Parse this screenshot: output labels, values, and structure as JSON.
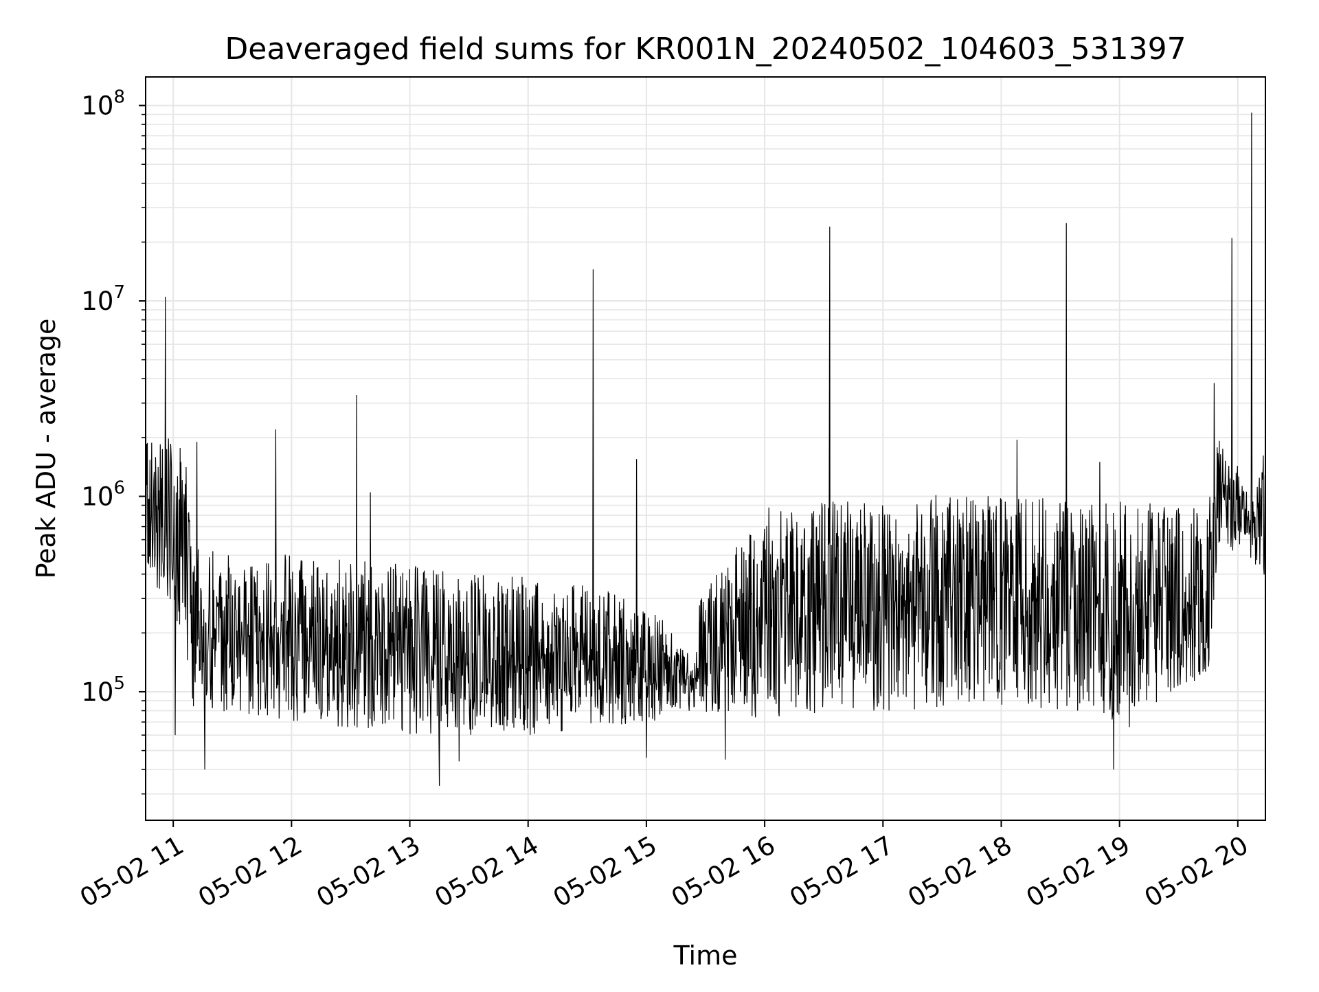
{
  "chart_data": {
    "type": "line",
    "title": "Deaveraged field sums for KR001N_20240502_104603_531397",
    "xlabel": "Time",
    "ylabel": "Peak ADU - average",
    "y_scale": "log",
    "ylim": [
      22000,
      140000000
    ],
    "xlim": [
      "2024-05-02 10:46",
      "2024-05-02 20:14"
    ],
    "grid": true,
    "line_color": "#000000",
    "x_ticks": [
      {
        "t": "2024-05-02 11:00",
        "label": "05-02 11"
      },
      {
        "t": "2024-05-02 12:00",
        "label": "05-02 12"
      },
      {
        "t": "2024-05-02 13:00",
        "label": "05-02 13"
      },
      {
        "t": "2024-05-02 14:00",
        "label": "05-02 14"
      },
      {
        "t": "2024-05-02 15:00",
        "label": "05-02 15"
      },
      {
        "t": "2024-05-02 16:00",
        "label": "05-02 16"
      },
      {
        "t": "2024-05-02 17:00",
        "label": "05-02 17"
      },
      {
        "t": "2024-05-02 18:00",
        "label": "05-02 18"
      },
      {
        "t": "2024-05-02 19:00",
        "label": "05-02 19"
      },
      {
        "t": "2024-05-02 20:00",
        "label": "05-02 20"
      }
    ],
    "y_ticks": [
      {
        "value": 100000,
        "base": "10",
        "exp": "5"
      },
      {
        "value": 1000000,
        "base": "10",
        "exp": "6"
      },
      {
        "value": 10000000,
        "base": "10",
        "exp": "7"
      },
      {
        "value": 100000000,
        "base": "10",
        "exp": "8"
      }
    ],
    "envelope": [
      {
        "t": "2024-05-02 10:46",
        "low": 400000,
        "high": 2000000
      },
      {
        "t": "2024-05-02 11:05",
        "low": 200000,
        "high": 2200000
      },
      {
        "t": "2024-05-02 11:10",
        "low": 80000,
        "high": 550000
      },
      {
        "t": "2024-05-02 12:00",
        "low": 70000,
        "high": 500000
      },
      {
        "t": "2024-05-02 13:00",
        "low": 60000,
        "high": 450000
      },
      {
        "t": "2024-05-02 14:00",
        "low": 60000,
        "high": 400000
      },
      {
        "t": "2024-05-02 15:00",
        "low": 70000,
        "high": 300000
      },
      {
        "t": "2024-05-02 15:25",
        "low": 75000,
        "high": 140000
      },
      {
        "t": "2024-05-02 15:27",
        "low": 80000,
        "high": 300000
      },
      {
        "t": "2024-05-02 16:00",
        "low": 70000,
        "high": 900000
      },
      {
        "t": "2024-05-02 16:40",
        "low": 80000,
        "high": 950000
      },
      {
        "t": "2024-05-02 17:00",
        "low": 80000,
        "high": 1050000
      },
      {
        "t": "2024-05-02 18:00",
        "low": 80000,
        "high": 1000000
      },
      {
        "t": "2024-05-02 19:00",
        "low": 70000,
        "high": 950000
      },
      {
        "t": "2024-05-02 19:45",
        "low": 120000,
        "high": 900000
      },
      {
        "t": "2024-05-02 19:50",
        "low": 550000,
        "high": 2000000
      },
      {
        "t": "2024-05-02 20:05",
        "low": 500000,
        "high": 1200000
      },
      {
        "t": "2024-05-02 20:14",
        "low": 350000,
        "high": 1700000
      }
    ],
    "spikes": [
      {
        "t": "2024-05-02 10:56",
        "value": 10500000
      },
      {
        "t": "2024-05-02 11:12",
        "value": 1900000
      },
      {
        "t": "2024-05-02 11:16",
        "value": 1400000
      },
      {
        "t": "2024-05-02 11:52",
        "value": 2200000
      },
      {
        "t": "2024-05-02 12:33",
        "value": 3300000
      },
      {
        "t": "2024-05-02 12:40",
        "value": 1050000
      },
      {
        "t": "2024-05-02 14:33",
        "value": 14500000
      },
      {
        "t": "2024-05-02 14:55",
        "value": 1550000
      },
      {
        "t": "2024-05-02 16:33",
        "value": 24000000
      },
      {
        "t": "2024-05-02 18:08",
        "value": 1950000
      },
      {
        "t": "2024-05-02 18:33",
        "value": 25000000
      },
      {
        "t": "2024-05-02 18:50",
        "value": 1500000
      },
      {
        "t": "2024-05-02 19:48",
        "value": 3800000
      },
      {
        "t": "2024-05-02 19:57",
        "value": 21000000
      },
      {
        "t": "2024-05-02 20:07",
        "value": 92000000
      }
    ],
    "dips": [
      {
        "t": "2024-05-02 11:01",
        "value": 60000
      },
      {
        "t": "2024-05-02 11:16",
        "value": 40000
      },
      {
        "t": "2024-05-02 13:15",
        "value": 33000
      },
      {
        "t": "2024-05-02 13:25",
        "value": 44000
      },
      {
        "t": "2024-05-02 15:00",
        "value": 46000
      },
      {
        "t": "2024-05-02 15:40",
        "value": 45000
      },
      {
        "t": "2024-05-02 18:57",
        "value": 40000
      },
      {
        "t": "2024-05-02 19:05",
        "value": 66000
      }
    ]
  }
}
